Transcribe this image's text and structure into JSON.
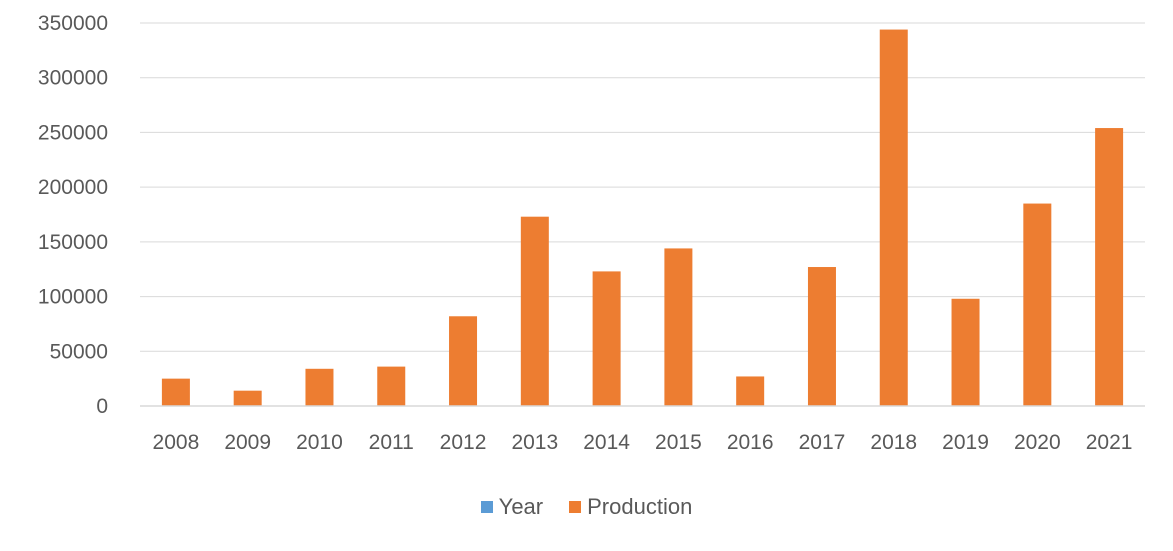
{
  "chart_data": {
    "type": "bar",
    "categories": [
      "2008",
      "2009",
      "2010",
      "2011",
      "2012",
      "2013",
      "2014",
      "2015",
      "2016",
      "2017",
      "2018",
      "2019",
      "2020",
      "2021"
    ],
    "series": [
      {
        "name": "Year",
        "values": [
          2008,
          2009,
          2010,
          2011,
          2012,
          2013,
          2014,
          2015,
          2016,
          2017,
          2018,
          2019,
          2020,
          2021
        ],
        "color": "#5b9bd5"
      },
      {
        "name": "Production",
        "values": [
          25000,
          14000,
          34000,
          36000,
          82000,
          173000,
          123000,
          144000,
          27000,
          127000,
          344000,
          98000,
          185000,
          254000
        ],
        "color": "#ed7d31"
      }
    ],
    "ylim": [
      0,
      350000
    ],
    "yticks": [
      "0",
      "50000",
      "100000",
      "150000",
      "200000",
      "250000",
      "300000",
      "350000"
    ],
    "title": "",
    "xlabel": "",
    "ylabel": "",
    "grid": true,
    "legend_position": "bottom"
  }
}
